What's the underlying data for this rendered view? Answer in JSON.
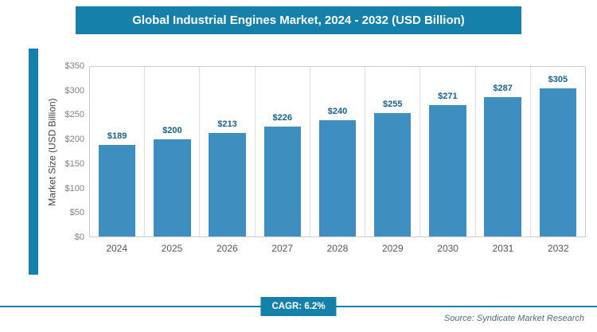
{
  "title": "Global Industrial Engines Market, 2024 - 2032 (USD Billion)",
  "chart_data": {
    "type": "bar",
    "categories": [
      "2024",
      "2025",
      "2026",
      "2027",
      "2028",
      "2029",
      "2030",
      "2031",
      "2032"
    ],
    "values": [
      189,
      200,
      213,
      226,
      240,
      255,
      271,
      287,
      305
    ],
    "value_labels": [
      "$189",
      "$200",
      "$213",
      "$226",
      "$240",
      "$255",
      "$271",
      "$287",
      "$305"
    ],
    "title": "Global Industrial Engines Market, 2024 - 2032 (USD Billion)",
    "xlabel": "",
    "ylabel": "Market Size (USD Billion)",
    "ylim": [
      0,
      350
    ],
    "ytick_step": 50,
    "ytick_labels": [
      "$350",
      "$300",
      "$250",
      "$200",
      "$150",
      "$100",
      "$50",
      "$0"
    ],
    "grid": "vertical",
    "legend": "none"
  },
  "footer": {
    "cagr_label": "CAGR: 6.2%",
    "source": "Source: Syndicate Market Research"
  },
  "colors": {
    "accent": "#1581aa",
    "bar": "#3e8fbf",
    "value_label": "#17618c"
  }
}
